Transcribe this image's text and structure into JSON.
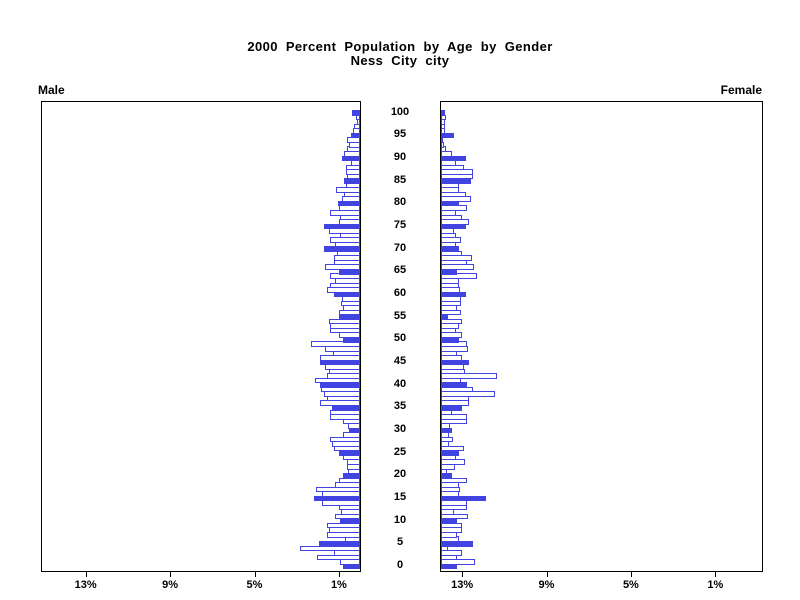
{
  "title": {
    "line1": "2000 Percent Population by Age by Gender",
    "line2": "Ness City city"
  },
  "panels": {
    "left_label": "Male",
    "right_label": "Female"
  },
  "chart_data": {
    "type": "bar",
    "subtype": "population-pyramid",
    "title": "2000 Percent Population by Age by Gender",
    "subtitle": "Ness City city",
    "unit": "percent of total population",
    "highlight_every": 5,
    "age_axis": {
      "ticks": [
        100,
        95,
        90,
        85,
        80,
        75,
        70,
        65,
        60,
        55,
        50,
        45,
        40,
        35,
        30,
        25,
        20,
        15,
        10,
        5,
        0
      ],
      "min_age": 0,
      "max_age": 100
    },
    "x_axis": {
      "left_tick_labels": [
        "13%",
        "9%",
        "5%",
        "1%"
      ],
      "right_tick_labels": [
        "1%",
        "5%",
        "9%",
        "13%"
      ],
      "tick_pct_values": [
        13,
        9,
        5,
        1
      ],
      "max_pct": 15.1,
      "grid": false
    },
    "colors": {
      "bar_fill": "#4144e0",
      "bar_open_fill": "#ffffff",
      "axis": "#000000",
      "background": "#ffffff"
    },
    "series": [
      {
        "name": "Male",
        "side": "left",
        "values_by_age": [
          0.8,
          0.95,
          2.05,
          1.25,
          2.85,
          1.95,
          0.7,
          1.55,
          1.45,
          1.55,
          0.95,
          1.2,
          0.9,
          1.0,
          1.8,
          2.2,
          1.8,
          2.1,
          1.2,
          1.0,
          0.8,
          0.55,
          0.6,
          0.6,
          0.8,
          1.0,
          1.25,
          1.35,
          1.4,
          0.8,
          0.5,
          0.55,
          0.8,
          1.4,
          1.4,
          1.35,
          1.9,
          1.55,
          1.7,
          1.85,
          1.9,
          2.15,
          1.55,
          1.45,
          1.65,
          1.9,
          1.9,
          1.3,
          1.65,
          2.3,
          0.8,
          1.0,
          1.4,
          1.4,
          1.45,
          1.0,
          1.0,
          0.8,
          0.9,
          0.85,
          1.25,
          1.55,
          1.4,
          1.2,
          1.4,
          1.0,
          1.65,
          1.25,
          1.25,
          1.1,
          1.7,
          1.2,
          1.4,
          0.95,
          1.45,
          1.7,
          1.0,
          0.95,
          1.4,
          1.0,
          1.05,
          0.85,
          0.75,
          1.15,
          0.65,
          0.75,
          0.6,
          0.65,
          0.65,
          0.45,
          0.85,
          0.75,
          0.6,
          0.5,
          0.6,
          0.45,
          0.35,
          0.3,
          0.15,
          0.2,
          0.4
        ]
      },
      {
        "name": "Female",
        "side": "right",
        "values_by_age": [
          0.75,
          1.6,
          0.75,
          1.0,
          0.35,
          1.5,
          0.85,
          0.75,
          1.0,
          1.0,
          0.75,
          1.3,
          0.6,
          1.25,
          1.25,
          2.15,
          0.85,
          0.9,
          0.85,
          1.25,
          0.5,
          0.3,
          0.65,
          1.15,
          0.7,
          0.85,
          1.1,
          0.4,
          0.55,
          0.4,
          0.5,
          0.45,
          1.25,
          1.25,
          0.5,
          1.0,
          1.35,
          1.35,
          2.55,
          1.5,
          1.25,
          0.95,
          2.65,
          1.15,
          1.1,
          1.35,
          1.0,
          0.75,
          1.3,
          1.25,
          0.85,
          1.0,
          0.7,
          0.85,
          1.0,
          0.35,
          0.95,
          0.75,
          0.95,
          0.95,
          1.2,
          0.9,
          0.85,
          0.85,
          1.7,
          0.75,
          1.55,
          1.25,
          1.45,
          1.0,
          0.85,
          0.7,
          0.95,
          0.7,
          0.6,
          1.2,
          1.35,
          1.0,
          0.7,
          1.25,
          0.85,
          1.4,
          1.2,
          0.85,
          0.85,
          1.4,
          1.5,
          1.5,
          1.1,
          0.7,
          1.2,
          0.5,
          0.25,
          0.15,
          0.1,
          0.6,
          0.2,
          0.2,
          0.2,
          0.25,
          0.2
        ]
      }
    ]
  }
}
